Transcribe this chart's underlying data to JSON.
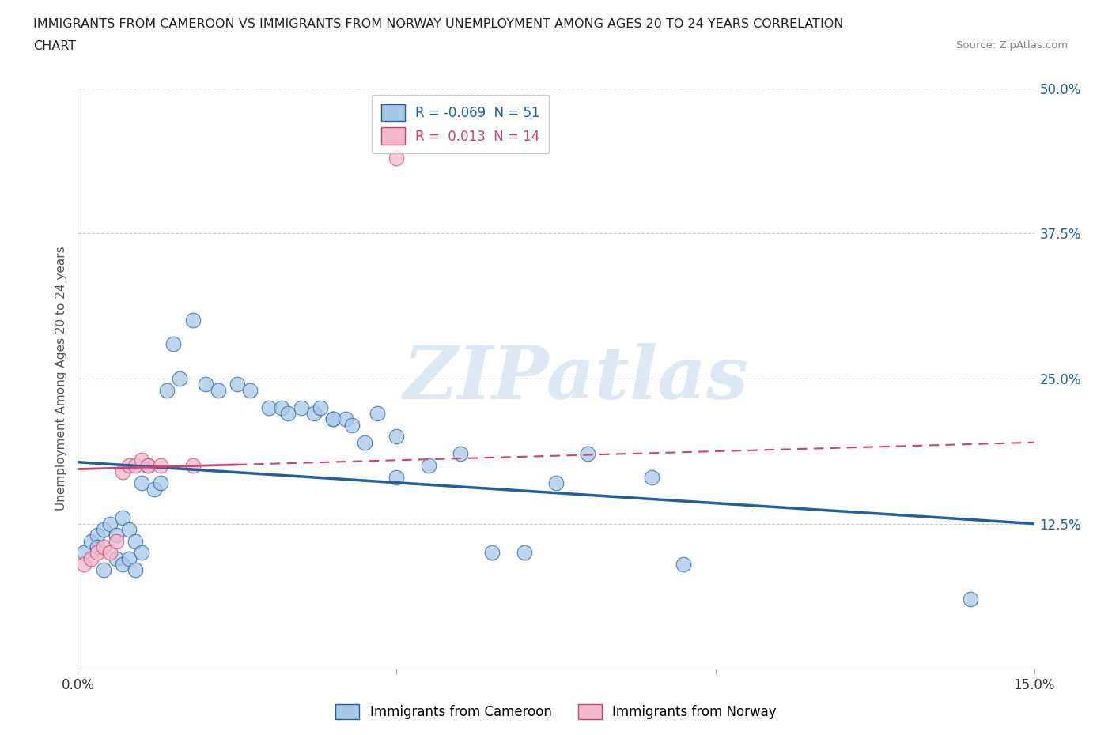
{
  "title_line1": "IMMIGRANTS FROM CAMEROON VS IMMIGRANTS FROM NORWAY UNEMPLOYMENT AMONG AGES 20 TO 24 YEARS CORRELATION",
  "title_line2": "CHART",
  "source": "Source: ZipAtlas.com",
  "ylabel": "Unemployment Among Ages 20 to 24 years",
  "xlim": [
    0.0,
    0.15
  ],
  "ylim": [
    0.0,
    0.5
  ],
  "xticks": [
    0.0,
    0.05,
    0.1,
    0.15
  ],
  "xtick_labels": [
    "0.0%",
    "",
    "",
    "15.0%"
  ],
  "yticks": [
    0.0,
    0.125,
    0.25,
    0.375,
    0.5
  ],
  "ytick_labels": [
    "",
    "12.5%",
    "25.0%",
    "37.5%",
    "50.0%"
  ],
  "R_cameroon": -0.069,
  "N_cameroon": 51,
  "R_norway": 0.013,
  "N_norway": 14,
  "color_cameroon": "#a8c8e8",
  "color_norway": "#f4b8cc",
  "line_color_cameroon": "#2060a0",
  "line_color_norway": "#d04070",
  "watermark_text": "ZIPatlas",
  "watermark_color": "#d0dff0",
  "cameroon_x": [
    0.001,
    0.002,
    0.003,
    0.003,
    0.004,
    0.004,
    0.005,
    0.006,
    0.006,
    0.007,
    0.007,
    0.008,
    0.008,
    0.009,
    0.009,
    0.01,
    0.01,
    0.011,
    0.012,
    0.013,
    0.014,
    0.015,
    0.016,
    0.018,
    0.02,
    0.022,
    0.025,
    0.027,
    0.03,
    0.032,
    0.033,
    0.035,
    0.037,
    0.038,
    0.04,
    0.04,
    0.042,
    0.043,
    0.045,
    0.047,
    0.05,
    0.05,
    0.055,
    0.06,
    0.065,
    0.07,
    0.075,
    0.08,
    0.09,
    0.095,
    0.14
  ],
  "cameroon_y": [
    0.1,
    0.11,
    0.115,
    0.105,
    0.12,
    0.085,
    0.125,
    0.095,
    0.115,
    0.09,
    0.13,
    0.095,
    0.12,
    0.085,
    0.11,
    0.1,
    0.16,
    0.175,
    0.155,
    0.16,
    0.24,
    0.28,
    0.25,
    0.3,
    0.245,
    0.24,
    0.245,
    0.24,
    0.225,
    0.225,
    0.22,
    0.225,
    0.22,
    0.225,
    0.215,
    0.215,
    0.215,
    0.21,
    0.195,
    0.22,
    0.2,
    0.165,
    0.175,
    0.185,
    0.1,
    0.1,
    0.16,
    0.185,
    0.165,
    0.09,
    0.06
  ],
  "norway_x": [
    0.001,
    0.002,
    0.003,
    0.004,
    0.005,
    0.006,
    0.007,
    0.008,
    0.009,
    0.01,
    0.011,
    0.013,
    0.018,
    0.05
  ],
  "norway_y": [
    0.09,
    0.095,
    0.1,
    0.105,
    0.1,
    0.11,
    0.17,
    0.175,
    0.175,
    0.18,
    0.175,
    0.175,
    0.175,
    0.44
  ]
}
